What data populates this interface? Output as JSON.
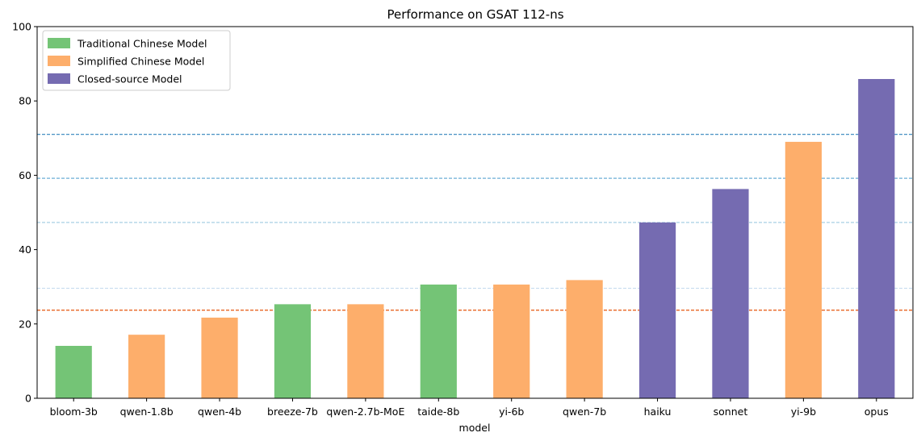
{
  "chart_data": {
    "type": "bar",
    "title": "Performance on GSAT 112-ns",
    "xlabel": "model",
    "ylabel": "",
    "ylim": [
      0,
      100
    ],
    "yticks": [
      0,
      20,
      40,
      60,
      80,
      100
    ],
    "categories": [
      "bloom-3b",
      "qwen-1.8b",
      "qwen-4b",
      "breeze-7b",
      "qwen-2.7b-MoE",
      "taide-8b",
      "yi-6b",
      "qwen-7b",
      "haiku",
      "sonnet",
      "yi-9b",
      "opus"
    ],
    "values": [
      14.1,
      17.1,
      21.7,
      25.3,
      25.3,
      30.6,
      30.6,
      31.8,
      47.3,
      56.3,
      69.0,
      85.9
    ],
    "groups": [
      "traditional",
      "simplified",
      "simplified",
      "traditional",
      "simplified",
      "traditional",
      "simplified",
      "simplified",
      "closed",
      "closed",
      "simplified",
      "closed"
    ],
    "legend": {
      "placement": "top-left",
      "entries": [
        {
          "key": "traditional",
          "label": "Traditional Chinese Model",
          "color": "#74c476"
        },
        {
          "key": "simplified",
          "label": "Simplified Chinese Model",
          "color": "#fdae6b"
        },
        {
          "key": "closed",
          "label": "Closed-source Model",
          "color": "#756bb1"
        }
      ]
    },
    "reference_lines": [
      {
        "value": 71.0,
        "color": "#3182bd"
      },
      {
        "value": 59.2,
        "color": "#6baed6"
      },
      {
        "value": 47.3,
        "color": "#9ecae1"
      },
      {
        "value": 29.6,
        "color": "#c6dbef"
      },
      {
        "value": 23.7,
        "color": "#e6550d"
      }
    ],
    "grid": false
  }
}
